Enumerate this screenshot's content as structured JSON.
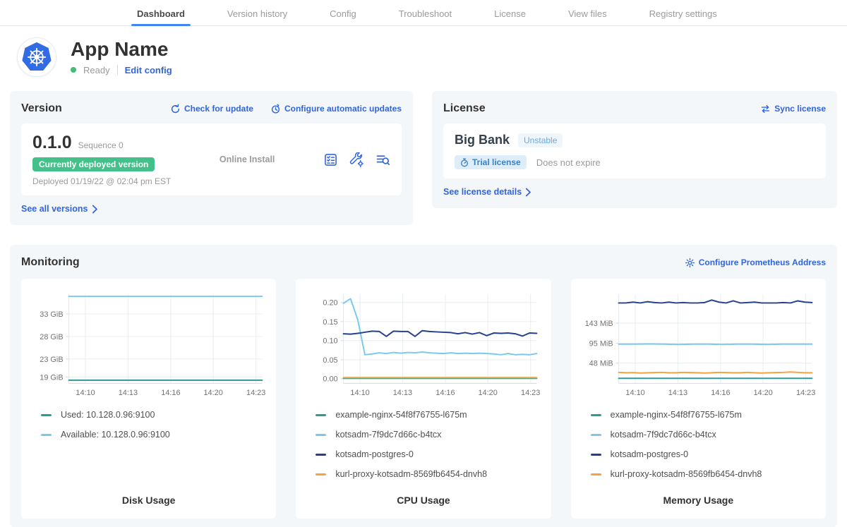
{
  "nav": {
    "tabs": [
      {
        "label": "Dashboard",
        "active": true
      },
      {
        "label": "Version history",
        "active": false
      },
      {
        "label": "Config",
        "active": false
      },
      {
        "label": "Troubleshoot",
        "active": false
      },
      {
        "label": "License",
        "active": false
      },
      {
        "label": "View files",
        "active": false
      },
      {
        "label": "Registry settings",
        "active": false
      }
    ]
  },
  "header": {
    "app_name": "App Name",
    "status": "Ready",
    "edit_config_label": "Edit config"
  },
  "version": {
    "title": "Version",
    "check_update_label": "Check for update",
    "auto_updates_label": "Configure automatic updates",
    "number": "0.1.0",
    "sequence_label": "Sequence 0",
    "deployed_badge": "Currently deployed version",
    "install_type": "Online Install",
    "deployed_at": "Deployed 01/19/22 @ 02:04 pm EST",
    "see_all_label": "See all versions"
  },
  "license": {
    "title": "License",
    "sync_label": "Sync license",
    "customer_name": "Big Bank",
    "channel_badge": "Unstable",
    "type_badge": "Trial license",
    "expiration": "Does not expire",
    "details_label": "See license details"
  },
  "monitoring": {
    "title": "Monitoring",
    "configure_label": "Configure Prometheus Address"
  },
  "colors": {
    "link_blue": "#3065e0",
    "active_tab_underline": "#4285f4",
    "deployed_badge_green": "#44c18a",
    "ready_green": "#44bb77",
    "series_teal": "#2d9a9a",
    "series_light_blue": "#7ac9ed",
    "series_navy": "#24408e",
    "series_orange": "#f9a13d"
  },
  "chart_data": [
    {
      "type": "line",
      "title": "Disk Usage",
      "ylim": [
        17.6,
        37.4
      ],
      "y_ticks": [
        {
          "label": "33 GiB",
          "value": 33
        },
        {
          "label": "28 GiB",
          "value": 28
        },
        {
          "label": "23 GiB",
          "value": 23
        },
        {
          "label": "19 GiB",
          "value": 19
        }
      ],
      "x_ticks": [
        {
          "label": "14:10",
          "pos": 0.086
        },
        {
          "label": "14:13",
          "pos": 0.306
        },
        {
          "label": "14:16",
          "pos": 0.527
        },
        {
          "label": "14:20",
          "pos": 0.747
        },
        {
          "label": "14:23",
          "pos": 0.968
        }
      ],
      "series": [
        {
          "name": "Used: 10.128.0.96:9100",
          "color": "#2d9a9a",
          "points": [
            18.3,
            18.3
          ]
        },
        {
          "name": "Available: 10.128.0.96:9100",
          "color": "#7ac9ed",
          "points": [
            36.9,
            36.9
          ]
        }
      ]
    },
    {
      "type": "line",
      "title": "CPU Usage",
      "ylim": [
        -0.012,
        0.222
      ],
      "y_ticks": [
        {
          "label": "0.20",
          "value": 0.2
        },
        {
          "label": "0.15",
          "value": 0.15
        },
        {
          "label": "0.10",
          "value": 0.1
        },
        {
          "label": "0.05",
          "value": 0.05
        },
        {
          "label": "0.00",
          "value": 0.0
        }
      ],
      "x_ticks": [
        {
          "label": "14:10",
          "pos": 0.086
        },
        {
          "label": "14:13",
          "pos": 0.306
        },
        {
          "label": "14:16",
          "pos": 0.527
        },
        {
          "label": "14:20",
          "pos": 0.747
        },
        {
          "label": "14:23",
          "pos": 0.968
        }
      ],
      "series": [
        {
          "name": "example-nginx-54f8f76755-l675m",
          "color": "#2d9a9a",
          "points": [
            0.001,
            0.001
          ]
        },
        {
          "name": "kotsadm-7f9dc7d66c-b4tcx",
          "color": "#7ac9ed",
          "points": [
            0.198,
            0.21,
            0.155,
            0.063,
            0.065,
            0.068,
            0.066,
            0.069,
            0.067,
            0.069,
            0.068,
            0.07,
            0.068,
            0.067,
            0.066,
            0.068,
            0.066,
            0.067,
            0.066,
            0.067,
            0.066,
            0.065,
            0.063,
            0.066,
            0.063,
            0.064,
            0.063,
            0.066
          ]
        },
        {
          "name": "kotsadm-postgres-0",
          "color": "#24408e",
          "points": [
            0.118,
            0.117,
            0.119,
            0.122,
            0.125,
            0.124,
            0.111,
            0.125,
            0.124,
            0.124,
            0.111,
            0.126,
            0.124,
            0.123,
            0.122,
            0.121,
            0.118,
            0.121,
            0.117,
            0.121,
            0.113,
            0.12,
            0.119,
            0.12,
            0.118,
            0.112,
            0.12,
            0.119
          ]
        },
        {
          "name": "kurl-proxy-kotsadm-8569fb6454-dnvh8",
          "color": "#f9a13d",
          "points": [
            0.003,
            0.003
          ]
        }
      ]
    },
    {
      "type": "line",
      "title": "Memory Usage",
      "ylim": [
        0,
        212
      ],
      "y_ticks": [
        {
          "label": "143 MiB",
          "value": 143
        },
        {
          "label": "95 MiB",
          "value": 95
        },
        {
          "label": "48 MiB",
          "value": 48
        }
      ],
      "x_ticks": [
        {
          "label": "14:10",
          "pos": 0.086
        },
        {
          "label": "14:13",
          "pos": 0.306
        },
        {
          "label": "14:16",
          "pos": 0.527
        },
        {
          "label": "14:20",
          "pos": 0.747
        },
        {
          "label": "14:23",
          "pos": 0.968
        }
      ],
      "series": [
        {
          "name": "example-nginx-54f8f76755-l675m",
          "color": "#2d9a9a",
          "points": [
            12,
            12
          ]
        },
        {
          "name": "kotsadm-7f9dc7d66c-b4tcx",
          "color": "#7ac9ed",
          "points": [
            93,
            93,
            93.5,
            93,
            92.5,
            93,
            93,
            92.5,
            93,
            93,
            92.5,
            93,
            93,
            93
          ]
        },
        {
          "name": "kotsadm-postgres-0",
          "color": "#24408e",
          "points": [
            191,
            191,
            193,
            191,
            194,
            192,
            191,
            193,
            191,
            192,
            191,
            191,
            192,
            198,
            193,
            191,
            196,
            191,
            192,
            193,
            191,
            191,
            191,
            192,
            191,
            196,
            193,
            192
          ]
        },
        {
          "name": "kurl-proxy-kotsadm-8569fb6454-dnvh8",
          "color": "#f9a13d",
          "points": [
            26,
            25,
            25.5,
            24.5,
            25,
            25.5,
            26,
            25,
            25,
            26,
            25.5,
            25,
            24.5,
            25,
            26,
            25.5,
            25,
            25,
            26,
            25,
            24.5,
            25,
            25.5,
            26,
            27,
            26,
            25,
            25
          ]
        }
      ]
    }
  ]
}
